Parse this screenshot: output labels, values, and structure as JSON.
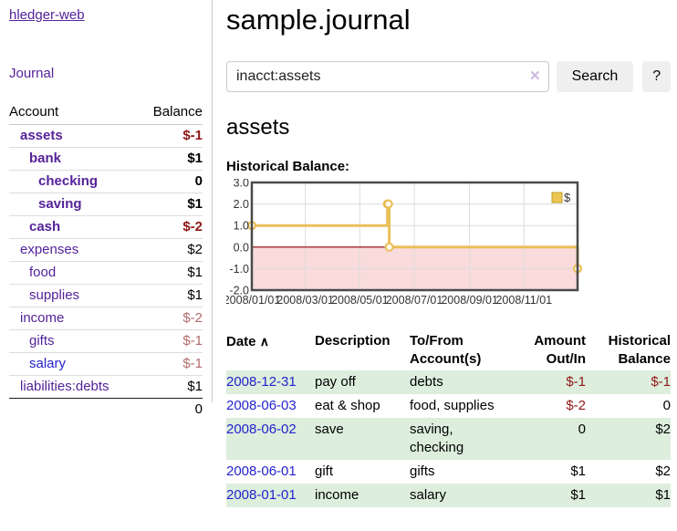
{
  "colors": {
    "link_purple": "#552299",
    "link_blue": "#2222cc",
    "negative_strong": "#8f1717",
    "negative_soft": "#b36b6b",
    "row_green": "#ddeedd",
    "chart_line_gold": "#e9c05a",
    "chart_negative_region": "#fadbdb",
    "chart_zero_line": "#8b0000",
    "chart_border": "#4a4a4a",
    "grid": "#dcdcdc"
  },
  "brand": "hledger-web",
  "nav": {
    "journal": "Journal"
  },
  "accounts_panel": {
    "headers": {
      "account": "Account",
      "balance": "Balance"
    },
    "rows": [
      {
        "name": "assets",
        "level": 1,
        "bold": true,
        "balance": "$-1",
        "balance_tone": "negative-strong",
        "link_color": "purple"
      },
      {
        "name": "bank",
        "level": 2,
        "bold": true,
        "balance": "$1",
        "balance_tone": "normal",
        "link_color": "purple"
      },
      {
        "name": "checking",
        "level": 3,
        "bold": true,
        "balance": "0",
        "balance_tone": "normal",
        "link_color": "purple"
      },
      {
        "name": "saving",
        "level": 3,
        "bold": true,
        "balance": "$1",
        "balance_tone": "normal",
        "link_color": "purple"
      },
      {
        "name": "cash",
        "level": 2,
        "bold": true,
        "balance": "$-2",
        "balance_tone": "negative-strong",
        "link_color": "purple"
      },
      {
        "name": "expenses",
        "level": 1,
        "bold": false,
        "balance": "$2",
        "balance_tone": "normal",
        "link_color": "purple"
      },
      {
        "name": "food",
        "level": 2,
        "bold": false,
        "balance": "$1",
        "balance_tone": "normal",
        "link_color": "purple"
      },
      {
        "name": "supplies",
        "level": 2,
        "bold": false,
        "balance": "$1",
        "balance_tone": "normal",
        "link_color": "purple"
      },
      {
        "name": "income",
        "level": 1,
        "bold": false,
        "balance": "$-2",
        "balance_tone": "negative-soft",
        "link_color": "purple"
      },
      {
        "name": "gifts",
        "level": 2,
        "bold": false,
        "balance": "$-1",
        "balance_tone": "negative-soft",
        "link_color": "purple"
      },
      {
        "name": "salary",
        "level": 2,
        "bold": false,
        "balance": "$-1",
        "balance_tone": "negative-soft",
        "link_color": "blue"
      },
      {
        "name": "liabilities:debts",
        "level": 1,
        "bold": false,
        "balance": "$1",
        "balance_tone": "normal",
        "link_color": "purple"
      }
    ],
    "total": "0"
  },
  "header": {
    "title": "sample.journal"
  },
  "search": {
    "value": "inacct:assets",
    "clear_icon": "✕",
    "button_label": "Search",
    "help_label": "?"
  },
  "account_page": {
    "heading": "assets",
    "chart_title": "Historical Balance:"
  },
  "chart_data": {
    "type": "line",
    "title": "Historical Balance",
    "legend": {
      "label": "$",
      "position": "top-right",
      "swatch_fill": "#ecc64f",
      "swatch_border": "#c09c2c"
    },
    "x_domain_days": [
      0,
      365
    ],
    "x_ticks": [
      {
        "label": "2008/01/01",
        "day": 0
      },
      {
        "label": "2008/03/01",
        "day": 60
      },
      {
        "label": "2008/05/01",
        "day": 121
      },
      {
        "label": "2008/07/01",
        "day": 182
      },
      {
        "label": "2008/09/01",
        "day": 244
      },
      {
        "label": "2008/11/01",
        "day": 305
      }
    ],
    "ylim": [
      -2,
      3
    ],
    "y_ticks": [
      {
        "value": 3,
        "label": "3.0"
      },
      {
        "value": 2,
        "label": "2.0"
      },
      {
        "value": 1,
        "label": "1.0"
      },
      {
        "value": 0,
        "label": "0.0"
      },
      {
        "value": -1,
        "label": "-1.0"
      },
      {
        "value": -2,
        "label": "-2.0"
      }
    ],
    "series": [
      {
        "name": "$",
        "step": "post",
        "points": [
          {
            "date": "2008-01-01",
            "day": 0,
            "value": 1
          },
          {
            "date": "2008-06-01",
            "day": 152,
            "value": 2
          },
          {
            "date": "2008-06-02",
            "day": 153,
            "value": 2
          },
          {
            "date": "2008-06-03",
            "day": 154,
            "value": 0
          },
          {
            "date": "2008-12-31",
            "day": 365,
            "value": -1
          }
        ]
      }
    ]
  },
  "register": {
    "headers": {
      "date": "Date",
      "sort_icon": "∧",
      "description": "Description",
      "accounts": "To/From Account(s)",
      "amount": "Amount Out/In",
      "balance": "Historical Balance"
    },
    "rows": [
      {
        "date": "2008-12-31",
        "description": "pay off",
        "accounts": "debts",
        "amount": "$-1",
        "amount_negative": true,
        "balance": "$-1",
        "balance_negative": true
      },
      {
        "date": "2008-06-03",
        "description": "eat & shop",
        "accounts": "food, supplies",
        "amount": "$-2",
        "amount_negative": true,
        "balance": "0",
        "balance_negative": false
      },
      {
        "date": "2008-06-02",
        "description": "save",
        "accounts": "saving, checking",
        "amount": "0",
        "amount_negative": false,
        "balance": "$2",
        "balance_negative": false
      },
      {
        "date": "2008-06-01",
        "description": "gift",
        "accounts": "gifts",
        "amount": "$1",
        "amount_negative": false,
        "balance": "$2",
        "balance_negative": false
      },
      {
        "date": "2008-01-01",
        "description": "income",
        "accounts": "salary",
        "amount": "$1",
        "amount_negative": false,
        "balance": "$1",
        "balance_negative": false
      }
    ]
  }
}
